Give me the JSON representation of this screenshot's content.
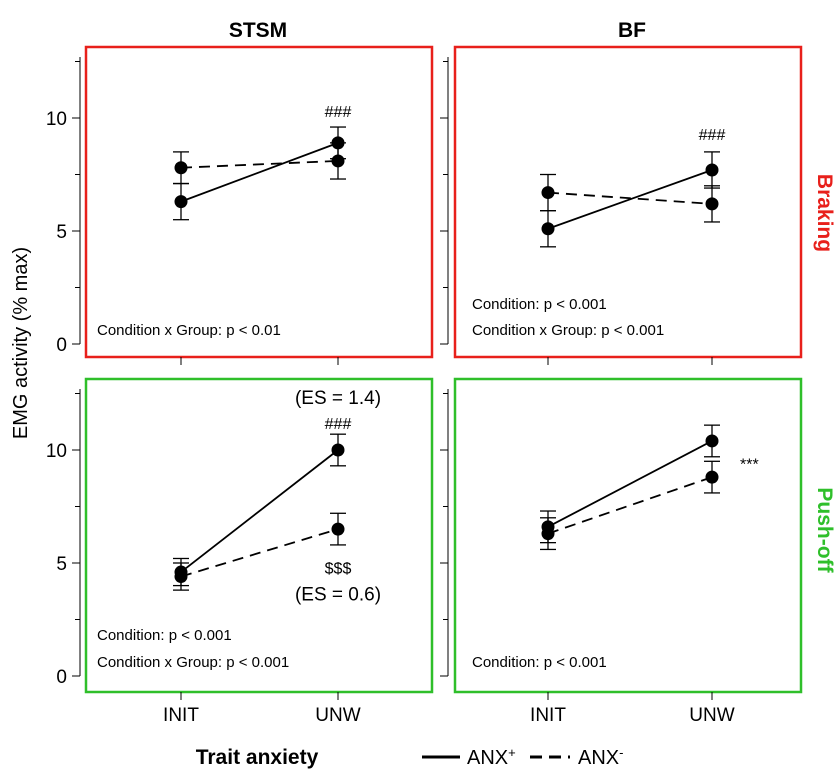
{
  "col_titles": [
    "STSM",
    "BF"
  ],
  "row_labels": [
    "Braking",
    "Push-off"
  ],
  "ylabel": "EMG activity (% max)",
  "legend": {
    "title": "Trait anxiety",
    "solid": "ANX",
    "solid_sup": "+",
    "dashed": "ANX",
    "dashed_sup": "-"
  },
  "colors": {
    "braking": "#e8201b",
    "pushoff": "#2fbf2a",
    "marks": "#000000"
  },
  "chart_data": [
    {
      "type": "line",
      "panel": "STSM-Braking",
      "categories": [
        "INIT",
        "UNW"
      ],
      "ylim": [
        0,
        13
      ],
      "yticks": [
        0,
        5,
        10
      ],
      "series": [
        {
          "name": "ANX+",
          "style": "solid",
          "values": [
            6.3,
            8.9
          ],
          "error": [
            0.8,
            0.7
          ]
        },
        {
          "name": "ANX-",
          "style": "dashed",
          "values": [
            7.8,
            8.1
          ],
          "error": [
            0.7,
            0.8
          ]
        }
      ],
      "annotations": [
        {
          "text": "###",
          "cat": 1,
          "y": 10.3,
          "anchor": "middle"
        }
      ],
      "stats": [
        "Condition x Group: p < 0.01"
      ]
    },
    {
      "type": "line",
      "panel": "BF-Braking",
      "categories": [
        "INIT",
        "UNW"
      ],
      "ylim": [
        0,
        13
      ],
      "yticks": [
        0,
        5,
        10
      ],
      "series": [
        {
          "name": "ANX+",
          "style": "solid",
          "values": [
            5.1,
            7.7
          ],
          "error": [
            0.8,
            0.8
          ]
        },
        {
          "name": "ANX-",
          "style": "dashed",
          "values": [
            6.7,
            6.2
          ],
          "error": [
            0.8,
            0.8
          ]
        }
      ],
      "annotations": [
        {
          "text": "###",
          "cat": 1,
          "y": 9.3,
          "anchor": "middle"
        }
      ],
      "stats": [
        "Condition: p < 0.001",
        "Condition x Group: p < 0.001"
      ]
    },
    {
      "type": "line",
      "panel": "STSM-Push-off",
      "categories": [
        "INIT",
        "UNW"
      ],
      "ylim": [
        0,
        13
      ],
      "yticks": [
        0,
        5,
        10
      ],
      "series": [
        {
          "name": "ANX+",
          "style": "solid",
          "values": [
            4.6,
            10.0
          ],
          "error": [
            0.6,
            0.7
          ]
        },
        {
          "name": "ANX-",
          "style": "dashed",
          "values": [
            4.4,
            6.5
          ],
          "error": [
            0.6,
            0.7
          ]
        }
      ],
      "annotations": [
        {
          "text": "(ES = 1.4)",
          "cat": 1,
          "y": 12.3,
          "anchor": "middle"
        },
        {
          "text": "###",
          "cat": 1,
          "y": 11.2,
          "anchor": "middle"
        },
        {
          "text": "$$$",
          "cat": 1,
          "y": 4.8,
          "anchor": "middle"
        },
        {
          "text": "(ES = 0.6)",
          "cat": 1,
          "y": 3.6,
          "anchor": "middle"
        }
      ],
      "stats": [
        "Condition: p < 0.001",
        "Condition x Group: p < 0.001"
      ]
    },
    {
      "type": "line",
      "panel": "BF-Push-off",
      "categories": [
        "INIT",
        "UNW"
      ],
      "ylim": [
        0,
        13
      ],
      "yticks": [
        0,
        5,
        10
      ],
      "series": [
        {
          "name": "ANX+",
          "style": "solid",
          "values": [
            6.6,
            10.4
          ],
          "error": [
            0.7,
            0.7
          ]
        },
        {
          "name": "ANX-",
          "style": "dashed",
          "values": [
            6.3,
            8.8
          ],
          "error": [
            0.7,
            0.7
          ]
        }
      ],
      "annotations": [
        {
          "text": "***",
          "cat": 1,
          "y": 9.4,
          "anchor": "start",
          "dx": 0.28
        }
      ],
      "stats": [
        "Condition: p < 0.001"
      ]
    }
  ]
}
